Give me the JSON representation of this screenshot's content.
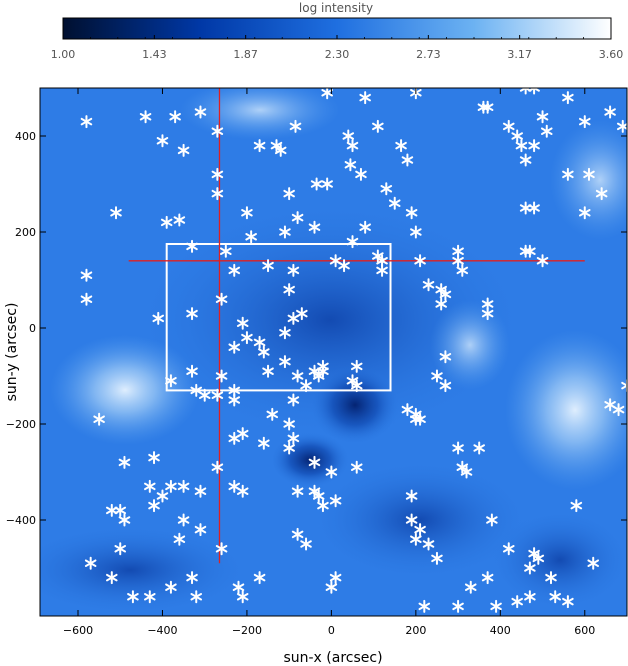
{
  "chart_data": {
    "type": "scatter",
    "title": "",
    "background": "solar EUV intensity image (blue color map)",
    "xlabel": "sun-x (arcsec)",
    "ylabel": "sun-y (arcsec)",
    "xlim": [
      -690,
      700
    ],
    "ylim": [
      -600,
      500
    ],
    "xticks": [
      -600,
      -400,
      -200,
      0,
      200,
      400,
      600
    ],
    "yticks": [
      -400,
      -200,
      0,
      200,
      400
    ],
    "colorbar": {
      "label": "log intensity",
      "range": [
        1.0,
        3.6
      ],
      "tick_labels": [
        "1.00",
        "1.43",
        "1.87",
        "2.30",
        "2.73",
        "3.17",
        "3.60"
      ],
      "colors": [
        "#001033",
        "#003aa8",
        "#1a6fe0",
        "#6fb4f2",
        "#ffffff"
      ]
    },
    "rectangle": {
      "x0": -390,
      "x1": 140,
      "y0": -130,
      "y1": 175,
      "color": "#ffffff"
    },
    "crosshair": {
      "x": -265,
      "y": 140,
      "x_from": -480,
      "x_to": 600,
      "y_from": -490,
      "y_to": 515,
      "color": "#e02020"
    },
    "marker": {
      "symbol": "asterisk",
      "color": "#ffffff"
    },
    "points": [
      [
        -10,
        490
      ],
      [
        80,
        480
      ],
      [
        480,
        500
      ],
      [
        200,
        490
      ],
      [
        560,
        480
      ],
      [
        660,
        450
      ],
      [
        600,
        430
      ],
      [
        690,
        420
      ],
      [
        -580,
        430
      ],
      [
        -440,
        440
      ],
      [
        -400,
        390
      ],
      [
        -350,
        370
      ],
      [
        -310,
        450
      ],
      [
        -370,
        440
      ],
      [
        -270,
        410
      ],
      [
        -170,
        380
      ],
      [
        -130,
        380
      ],
      [
        -85,
        420
      ],
      [
        40,
        400
      ],
      [
        50,
        380
      ],
      [
        110,
        420
      ],
      [
        165,
        380
      ],
      [
        180,
        350
      ],
      [
        45,
        340
      ],
      [
        70,
        320
      ],
      [
        -10,
        300
      ],
      [
        -35,
        300
      ],
      [
        360,
        460
      ],
      [
        370,
        460
      ],
      [
        420,
        420
      ],
      [
        460,
        500
      ],
      [
        440,
        400
      ],
      [
        450,
        380
      ],
      [
        460,
        350
      ],
      [
        500,
        440
      ],
      [
        510,
        410
      ],
      [
        480,
        380
      ],
      [
        560,
        320
      ],
      [
        610,
        320
      ],
      [
        640,
        280
      ],
      [
        600,
        240
      ],
      [
        460,
        250
      ],
      [
        480,
        250
      ],
      [
        460,
        160
      ],
      [
        470,
        160
      ],
      [
        500,
        140
      ],
      [
        -580,
        110
      ],
      [
        -580,
        60
      ],
      [
        -510,
        240
      ],
      [
        -390,
        220
      ],
      [
        -360,
        225
      ],
      [
        -330,
        170
      ],
      [
        -270,
        280
      ],
      [
        -270,
        320
      ],
      [
        -200,
        240
      ],
      [
        -250,
        160
      ],
      [
        -230,
        120
      ],
      [
        -190,
        190
      ],
      [
        -120,
        370
      ],
      [
        -40,
        210
      ],
      [
        -80,
        230
      ],
      [
        -100,
        280
      ],
      [
        -110,
        200
      ],
      [
        -90,
        120
      ],
      [
        -150,
        130
      ],
      [
        -100,
        80
      ],
      [
        10,
        140
      ],
      [
        30,
        130
      ],
      [
        50,
        180
      ],
      [
        80,
        210
      ],
      [
        110,
        150
      ],
      [
        120,
        140
      ],
      [
        120,
        120
      ],
      [
        130,
        290
      ],
      [
        150,
        260
      ],
      [
        190,
        240
      ],
      [
        200,
        200
      ],
      [
        210,
        140
      ],
      [
        230,
        90
      ],
      [
        300,
        140
      ],
      [
        310,
        120
      ],
      [
        300,
        160
      ],
      [
        260,
        80
      ],
      [
        270,
        70
      ],
      [
        260,
        50
      ],
      [
        370,
        50
      ],
      [
        370,
        30
      ],
      [
        -410,
        20
      ],
      [
        -330,
        30
      ],
      [
        -260,
        60
      ],
      [
        -210,
        10
      ],
      [
        -200,
        -20
      ],
      [
        -230,
        -40
      ],
      [
        -160,
        -50
      ],
      [
        -170,
        -30
      ],
      [
        -110,
        -10
      ],
      [
        -90,
        20
      ],
      [
        -70,
        30
      ],
      [
        -110,
        -70
      ],
      [
        -150,
        -90
      ],
      [
        -40,
        -90
      ],
      [
        -20,
        -80
      ],
      [
        -20,
        -90
      ],
      [
        -30,
        -100
      ],
      [
        60,
        -80
      ],
      [
        50,
        -110
      ],
      [
        60,
        -120
      ],
      [
        -80,
        -100
      ],
      [
        -330,
        -90
      ],
      [
        -260,
        -100
      ],
      [
        -270,
        -140
      ],
      [
        -300,
        -140
      ],
      [
        -320,
        -130
      ],
      [
        -380,
        -110
      ],
      [
        -230,
        -130
      ],
      [
        -230,
        -150
      ],
      [
        -140,
        -180
      ],
      [
        -100,
        -200
      ],
      [
        -90,
        -150
      ],
      [
        -60,
        -120
      ],
      [
        -230,
        -230
      ],
      [
        -210,
        -220
      ],
      [
        -270,
        -290
      ],
      [
        -160,
        -240
      ],
      [
        -100,
        -250
      ],
      [
        -90,
        -230
      ],
      [
        -40,
        -280
      ],
      [
        0,
        -300
      ],
      [
        10,
        -360
      ],
      [
        60,
        -290
      ],
      [
        -550,
        -190
      ],
      [
        -490,
        -280
      ],
      [
        -420,
        -270
      ],
      [
        -430,
        -330
      ],
      [
        -400,
        -350
      ],
      [
        -380,
        -330
      ],
      [
        -350,
        -330
      ],
      [
        -310,
        -340
      ],
      [
        -230,
        -330
      ],
      [
        -210,
        -340
      ],
      [
        -520,
        -380
      ],
      [
        -500,
        -380
      ],
      [
        -490,
        -400
      ],
      [
        -420,
        -370
      ],
      [
        -350,
        -400
      ],
      [
        -360,
        -440
      ],
      [
        -310,
        -420
      ],
      [
        -260,
        -460
      ],
      [
        -170,
        -520
      ],
      [
        -80,
        -340
      ],
      [
        -40,
        -340
      ],
      [
        -30,
        -350
      ],
      [
        -20,
        -370
      ],
      [
        -80,
        -430
      ],
      [
        -60,
        -450
      ],
      [
        10,
        -520
      ],
      [
        0,
        -540
      ],
      [
        -210,
        -560
      ],
      [
        -570,
        -490
      ],
      [
        -500,
        -460
      ],
      [
        -520,
        -520
      ],
      [
        -470,
        -560
      ],
      [
        -430,
        -560
      ],
      [
        -380,
        -540
      ],
      [
        -330,
        -520
      ],
      [
        -320,
        -560
      ],
      [
        -220,
        -540
      ],
      [
        200,
        -180
      ],
      [
        210,
        -190
      ],
      [
        200,
        -190
      ],
      [
        180,
        -170
      ],
      [
        250,
        -100
      ],
      [
        270,
        -120
      ],
      [
        270,
        -60
      ],
      [
        300,
        -250
      ],
      [
        310,
        -290
      ],
      [
        320,
        -300
      ],
      [
        350,
        -250
      ],
      [
        190,
        -350
      ],
      [
        210,
        -420
      ],
      [
        230,
        -450
      ],
      [
        190,
        -400
      ],
      [
        200,
        -440
      ],
      [
        250,
        -480
      ],
      [
        380,
        -400
      ],
      [
        420,
        -460
      ],
      [
        470,
        -500
      ],
      [
        480,
        -470
      ],
      [
        490,
        -480
      ],
      [
        520,
        -520
      ],
      [
        370,
        -520
      ],
      [
        330,
        -540
      ],
      [
        220,
        -580
      ],
      [
        300,
        -580
      ],
      [
        390,
        -580
      ],
      [
        440,
        -570
      ],
      [
        470,
        -560
      ],
      [
        530,
        -560
      ],
      [
        560,
        -570
      ],
      [
        580,
        -370
      ],
      [
        620,
        -490
      ],
      [
        660,
        -160
      ],
      [
        680,
        -170
      ],
      [
        700,
        -120
      ]
    ]
  }
}
